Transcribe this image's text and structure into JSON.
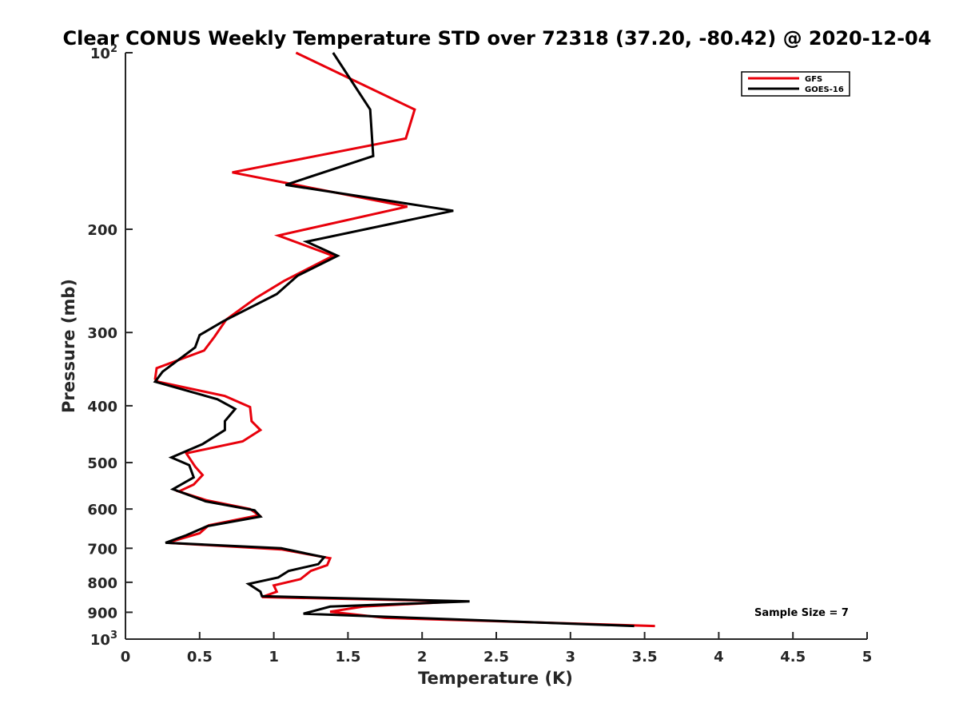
{
  "chart_data": {
    "type": "line",
    "title": "Clear CONUS Weekly Temperature STD over 72318 (37.20, -80.42) @ 2020-12-04",
    "xlabel": "Temperature (K)",
    "ylabel": "Pressure (mb)",
    "xlim": [
      0,
      5
    ],
    "ylim": [
      100,
      1000
    ],
    "yscale": "log",
    "y_reversed": true,
    "grid": false,
    "legend_position": "top-right",
    "x_ticks": [
      {
        "value": 0,
        "label": "0"
      },
      {
        "value": 0.5,
        "label": "0.5"
      },
      {
        "value": 1,
        "label": "1"
      },
      {
        "value": 1.5,
        "label": "1.5"
      },
      {
        "value": 2,
        "label": "2"
      },
      {
        "value": 2.5,
        "label": "2.5"
      },
      {
        "value": 3,
        "label": "3"
      },
      {
        "value": 3.5,
        "label": "3.5"
      },
      {
        "value": 4,
        "label": "4"
      },
      {
        "value": 4.5,
        "label": "4.5"
      },
      {
        "value": 5,
        "label": "5"
      }
    ],
    "y_ticks": [
      {
        "value": 100,
        "base": "10",
        "exp": "2"
      },
      {
        "value": 200,
        "label": "200"
      },
      {
        "value": 300,
        "label": "300"
      },
      {
        "value": 400,
        "label": "400"
      },
      {
        "value": 500,
        "label": "500"
      },
      {
        "value": 600,
        "label": "600"
      },
      {
        "value": 700,
        "label": "700"
      },
      {
        "value": 800,
        "label": "800"
      },
      {
        "value": 900,
        "label": "900"
      },
      {
        "value": 1000,
        "base": "10",
        "exp": "3"
      }
    ],
    "annotation": "Sample Size = 7",
    "series": [
      {
        "name": "GFS",
        "color": "#e8000b",
        "points": [
          [
            1.15,
            100
          ],
          [
            1.95,
            125
          ],
          [
            1.89,
            140
          ],
          [
            0.72,
            160
          ],
          [
            1.9,
            183
          ],
          [
            1.03,
            205
          ],
          [
            1.4,
            222
          ],
          [
            1.07,
            245
          ],
          [
            0.88,
            262
          ],
          [
            0.68,
            285
          ],
          [
            0.6,
            305
          ],
          [
            0.53,
            322
          ],
          [
            0.21,
            345
          ],
          [
            0.2,
            360
          ],
          [
            0.22,
            364
          ],
          [
            0.67,
            385
          ],
          [
            0.84,
            402
          ],
          [
            0.85,
            425
          ],
          [
            0.91,
            440
          ],
          [
            0.79,
            460
          ],
          [
            0.41,
            482
          ],
          [
            0.47,
            508
          ],
          [
            0.52,
            525
          ],
          [
            0.46,
            545
          ],
          [
            0.36,
            560
          ],
          [
            0.55,
            580
          ],
          [
            0.84,
            600
          ],
          [
            0.9,
            615
          ],
          [
            0.56,
            640
          ],
          [
            0.5,
            660
          ],
          [
            0.28,
            685
          ],
          [
            1.05,
            703
          ],
          [
            1.38,
            728
          ],
          [
            1.36,
            748
          ],
          [
            1.25,
            765
          ],
          [
            1.18,
            790
          ],
          [
            1.0,
            810
          ],
          [
            1.02,
            830
          ],
          [
            0.92,
            848
          ],
          [
            2.25,
            862
          ],
          [
            1.6,
            880
          ],
          [
            1.38,
            898
          ],
          [
            1.75,
            920
          ],
          [
            3.57,
            950
          ]
        ]
      },
      {
        "name": "GOES-16",
        "color": "#000000",
        "points": [
          [
            1.4,
            100
          ],
          [
            1.65,
            125
          ],
          [
            1.67,
            150
          ],
          [
            1.08,
            168
          ],
          [
            2.21,
            186
          ],
          [
            1.22,
            210
          ],
          [
            1.43,
            222
          ],
          [
            1.16,
            240
          ],
          [
            1.02,
            258
          ],
          [
            0.66,
            287
          ],
          [
            0.5,
            303
          ],
          [
            0.47,
            318
          ],
          [
            0.25,
            350
          ],
          [
            0.2,
            364
          ],
          [
            0.62,
            390
          ],
          [
            0.74,
            405
          ],
          [
            0.67,
            425
          ],
          [
            0.67,
            440
          ],
          [
            0.52,
            465
          ],
          [
            0.31,
            490
          ],
          [
            0.43,
            505
          ],
          [
            0.46,
            530
          ],
          [
            0.32,
            555
          ],
          [
            0.54,
            582
          ],
          [
            0.87,
            603
          ],
          [
            0.91,
            618
          ],
          [
            0.55,
            642
          ],
          [
            0.41,
            665
          ],
          [
            0.27,
            685
          ],
          [
            1.05,
            700
          ],
          [
            1.34,
            725
          ],
          [
            1.3,
            745
          ],
          [
            1.1,
            765
          ],
          [
            1.03,
            785
          ],
          [
            0.83,
            805
          ],
          [
            0.91,
            830
          ],
          [
            0.92,
            845
          ],
          [
            2.32,
            862
          ],
          [
            1.38,
            880
          ],
          [
            1.2,
            905
          ],
          [
            3.43,
            950
          ]
        ]
      }
    ]
  }
}
